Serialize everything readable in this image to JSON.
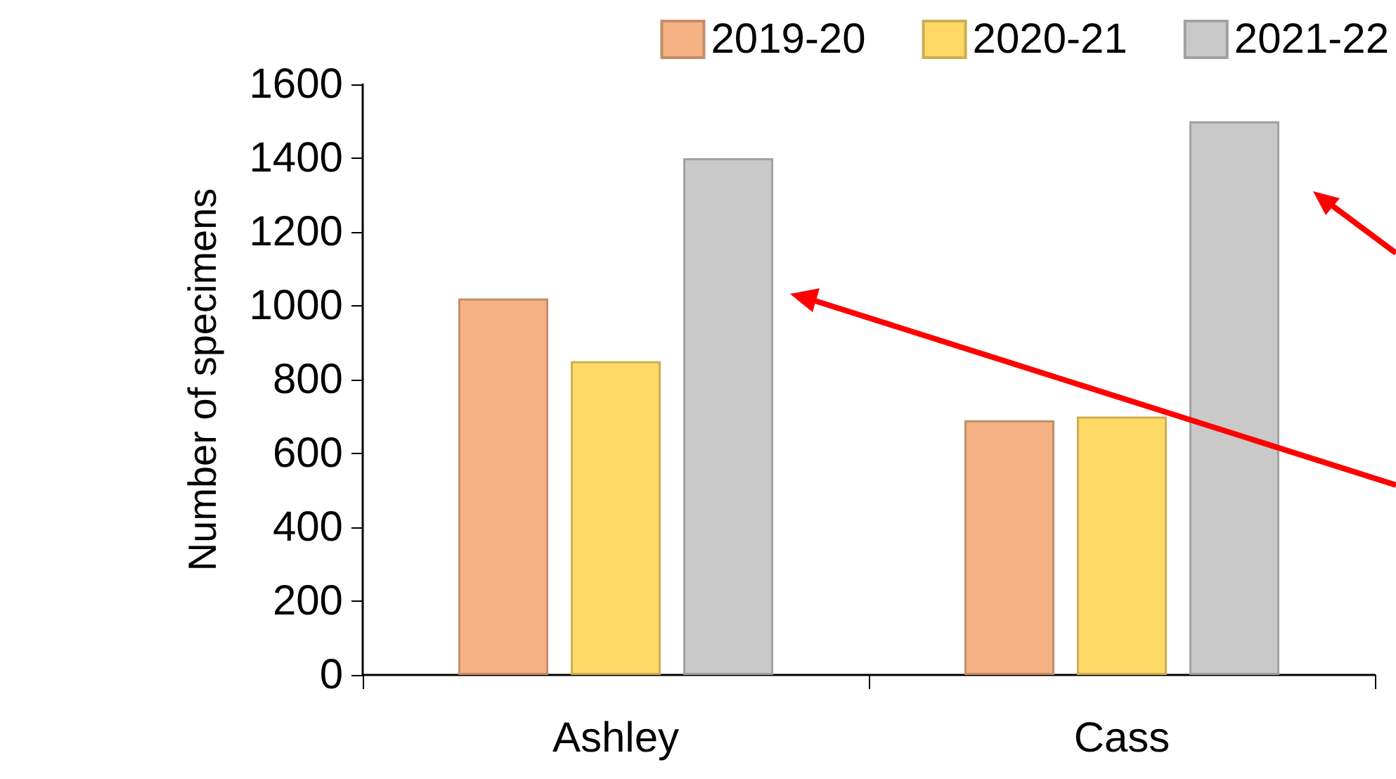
{
  "chart_data": {
    "type": "bar",
    "ylabel": "Number of specimens",
    "categories": [
      "Ashley",
      "Cass"
    ],
    "series": [
      {
        "name": "2019-20",
        "color": "#f4b183",
        "values": [
          1020,
          690
        ]
      },
      {
        "name": "2020-21",
        "color": "#ffd966",
        "values": [
          850,
          700
        ]
      },
      {
        "name": "2021-22",
        "color": "#c9c9c9",
        "values": [
          1400,
          1500
        ]
      }
    ],
    "ylim": [
      0,
      1600
    ],
    "yticks": [
      0,
      200,
      400,
      600,
      800,
      1000,
      1200,
      1400,
      1600
    ],
    "grid": false,
    "legend": "top right"
  }
}
